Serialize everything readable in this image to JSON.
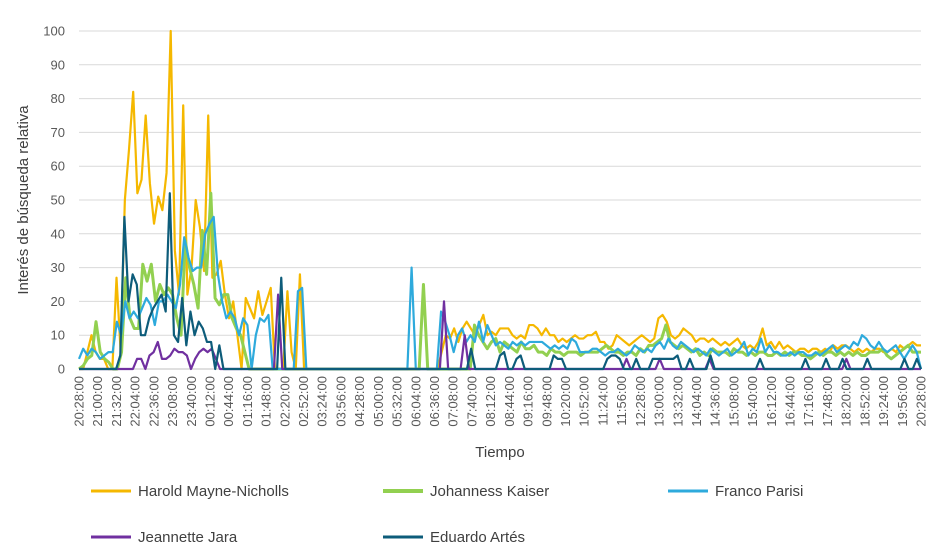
{
  "chart_data": {
    "type": "line",
    "title": "",
    "xlabel": "Tiempo",
    "ylabel": "Interés de búsqueda relativa",
    "ylim": [
      0,
      100
    ],
    "yticks": [
      0,
      10,
      20,
      30,
      40,
      50,
      60,
      70,
      80,
      90,
      100
    ],
    "grid": "horizontal",
    "legend_position": "bottom",
    "x_tick_labels": [
      "20:28:00",
      "21:00:00",
      "21:32:00",
      "22:04:00",
      "22:36:00",
      "23:08:00",
      "23:40:00",
      "00:12:00",
      "00:44:00",
      "01:16:00",
      "01:48:00",
      "02:20:00",
      "02:52:00",
      "03:24:00",
      "03:56:00",
      "04:28:00",
      "05:00:00",
      "05:32:00",
      "06:04:00",
      "06:36:00",
      "07:08:00",
      "07:40:00",
      "08:12:00",
      "08:44:00",
      "09:16:00",
      "09:48:00",
      "10:20:00",
      "10:52:00",
      "11:24:00",
      "11:56:00",
      "12:28:00",
      "13:00:00",
      "13:32:00",
      "14:04:00",
      "14:36:00",
      "15:08:00",
      "15:40:00",
      "16:12:00",
      "16:44:00",
      "17:16:00",
      "17:48:00",
      "18:20:00",
      "18:52:00",
      "19:24:00",
      "19:56:00",
      "20:28:00"
    ],
    "x_start": "20:28",
    "x_end": "20:28",
    "sampling": "8 min",
    "series": [
      {
        "name": "Harold Mayne-Nicholls",
        "color": "#F5B800",
        "values": [
          0,
          0,
          5,
          10,
          5,
          3,
          3,
          0,
          0,
          27,
          5,
          50,
          65,
          82,
          52,
          56,
          75,
          55,
          43,
          51,
          47,
          58,
          100,
          35,
          22,
          78,
          22,
          30,
          50,
          42,
          29,
          75,
          27,
          28,
          32,
          22,
          15,
          20,
          10,
          0,
          21,
          18,
          15,
          23,
          16,
          20,
          24,
          0,
          0,
          0,
          23,
          5,
          0,
          28,
          0,
          0,
          0,
          0,
          0,
          0,
          0,
          0,
          0,
          0,
          0,
          0,
          0,
          0,
          0,
          0,
          0,
          0,
          0,
          0,
          0,
          0,
          0,
          0,
          0,
          0,
          0,
          0,
          0,
          0,
          0,
          0,
          0,
          5,
          10,
          9,
          12,
          8,
          12,
          14,
          12,
          10,
          13,
          16,
          10,
          11,
          10,
          12,
          12,
          12,
          10,
          9,
          10,
          9,
          13,
          13,
          12,
          10,
          12,
          10,
          10,
          8,
          9,
          8,
          9,
          10,
          9,
          9,
          10,
          10,
          11,
          8,
          8,
          6,
          7,
          10,
          9,
          8,
          7,
          8,
          9,
          10,
          9,
          8,
          9,
          15,
          16,
          14,
          10,
          9,
          10,
          12,
          11,
          10,
          8,
          9,
          9,
          8,
          9,
          8,
          7,
          8,
          7,
          8,
          9,
          7,
          6,
          7,
          6,
          8,
          12,
          7,
          8,
          6,
          8,
          6,
          7,
          6,
          5,
          6,
          6,
          5,
          6,
          6,
          5,
          6,
          5,
          7,
          6,
          7,
          7,
          6,
          5,
          6,
          5,
          6,
          5,
          6,
          6,
          5,
          5,
          6,
          5,
          7,
          6,
          7,
          8,
          7,
          7
        ]
      },
      {
        "name": "Johanness Kaiser",
        "color": "#92D050",
        "values": [
          0,
          1,
          3,
          4,
          14,
          5,
          3,
          2,
          0,
          0,
          5,
          27,
          15,
          12,
          12,
          31,
          26,
          31,
          20,
          25,
          22,
          24,
          22,
          15,
          10,
          38,
          30,
          25,
          18,
          41,
          28,
          52,
          21,
          19,
          22,
          22,
          15,
          12,
          10,
          5,
          0,
          0,
          0,
          0,
          0,
          0,
          0,
          0,
          0,
          0,
          0,
          0,
          0,
          0,
          0,
          0,
          0,
          0,
          0,
          0,
          0,
          0,
          0,
          0,
          0,
          0,
          0,
          0,
          0,
          0,
          0,
          0,
          0,
          0,
          0,
          0,
          0,
          0,
          0,
          0,
          0,
          25,
          0,
          0,
          0,
          0,
          0,
          0,
          0,
          0,
          0,
          0,
          0,
          13,
          10,
          8,
          6,
          8,
          9,
          5,
          8,
          7,
          6,
          5,
          8,
          6,
          6,
          7,
          5,
          5,
          4,
          6,
          5,
          5,
          4,
          5,
          5,
          5,
          4,
          5,
          5,
          5,
          5,
          6,
          7,
          6,
          5,
          5,
          4,
          5,
          5,
          4,
          6,
          5,
          7,
          7,
          8,
          9,
          13,
          8,
          7,
          6,
          7,
          6,
          5,
          6,
          4,
          5,
          4,
          6,
          5,
          5,
          5,
          4,
          6,
          5,
          5,
          4,
          5,
          4,
          5,
          5,
          4,
          4,
          5,
          4,
          5,
          4,
          5,
          5,
          4,
          4,
          3,
          4,
          5,
          4,
          5,
          5,
          4,
          5,
          4,
          5,
          4,
          5,
          4,
          4,
          5,
          5,
          5,
          6,
          4,
          3,
          4,
          5,
          6,
          7,
          5,
          5,
          5
        ]
      },
      {
        "name": "Franco Parisi",
        "color": "#2EAADC",
        "values": [
          3,
          6,
          4,
          6,
          5,
          3,
          4,
          5,
          5,
          14,
          10,
          20,
          15,
          17,
          15,
          18,
          21,
          19,
          13,
          20,
          20,
          22,
          20,
          18,
          25,
          39,
          33,
          29,
          30,
          30,
          40,
          43,
          45,
          28,
          20,
          15,
          17,
          15,
          10,
          15,
          13,
          0,
          10,
          15,
          14,
          16,
          0,
          0,
          0,
          0,
          0,
          0,
          23,
          24,
          0,
          0,
          0,
          0,
          0,
          0,
          0,
          0,
          0,
          0,
          0,
          0,
          0,
          0,
          0,
          0,
          0,
          0,
          0,
          0,
          0,
          0,
          0,
          0,
          0,
          30,
          0,
          0,
          0,
          0,
          0,
          0,
          17,
          14,
          10,
          5,
          10,
          12,
          8,
          10,
          8,
          14,
          8,
          13,
          10,
          7,
          8,
          7,
          6,
          8,
          7,
          8,
          7,
          8,
          8,
          8,
          8,
          7,
          6,
          7,
          6,
          7,
          6,
          9,
          8,
          5,
          5,
          5,
          6,
          6,
          5,
          4,
          5,
          5,
          6,
          5,
          4,
          5,
          7,
          6,
          5,
          6,
          5,
          7,
          8,
          6,
          9,
          7,
          6,
          8,
          7,
          6,
          5,
          6,
          5,
          4,
          6,
          5,
          4,
          5,
          6,
          4,
          5,
          6,
          8,
          4,
          6,
          5,
          9,
          5,
          7,
          5,
          5,
          4,
          4,
          5,
          4,
          5,
          5,
          4,
          4,
          5,
          4,
          5,
          6,
          7,
          5,
          6,
          7,
          6,
          8,
          7,
          10,
          9,
          7,
          6,
          8,
          6,
          5,
          6,
          7,
          5,
          3,
          5,
          7,
          5,
          0
        ]
      },
      {
        "name": "Jeannette Jara",
        "color": "#7030A0",
        "values": [
          0,
          0,
          0,
          0,
          0,
          0,
          0,
          0,
          0,
          0,
          0,
          0,
          0,
          0,
          3,
          3,
          0,
          4,
          5,
          8,
          3,
          3,
          4,
          6,
          5,
          5,
          4,
          0,
          3,
          5,
          6,
          5,
          6,
          3,
          0,
          0,
          0,
          0,
          0,
          0,
          0,
          0,
          0,
          0,
          0,
          0,
          0,
          0,
          22,
          0,
          0,
          0,
          0,
          0,
          0,
          0,
          0,
          0,
          0,
          0,
          0,
          0,
          0,
          0,
          0,
          0,
          0,
          0,
          0,
          0,
          0,
          0,
          0,
          0,
          0,
          0,
          0,
          0,
          0,
          0,
          0,
          0,
          0,
          0,
          0,
          0,
          0,
          0,
          20,
          0,
          0,
          0,
          0,
          10,
          0,
          0,
          0,
          0,
          0,
          0,
          0,
          0,
          0,
          0,
          0,
          0,
          0,
          0,
          0,
          0,
          0,
          0,
          0,
          0,
          0,
          0,
          0,
          0,
          0,
          0,
          0,
          0,
          0,
          0,
          0,
          0,
          0,
          0,
          0,
          0,
          0,
          0,
          3,
          0,
          0,
          0,
          0,
          0,
          0,
          0,
          3,
          0,
          0,
          0,
          0,
          0,
          0,
          0,
          0,
          0,
          0,
          0,
          3,
          0,
          0,
          0,
          0,
          0,
          0,
          0,
          0,
          0,
          0,
          0,
          0,
          0,
          0,
          0,
          0,
          0,
          0,
          0,
          0,
          0,
          0,
          0,
          0,
          0,
          0,
          0,
          0,
          0,
          0,
          0,
          0,
          3,
          0,
          0,
          0,
          0,
          0,
          0,
          0,
          0,
          0,
          0,
          0,
          0,
          0,
          0,
          0,
          0,
          0,
          0
        ]
      },
      {
        "name": "Eduardo Artés",
        "color": "#0D5C7A",
        "values": [
          0,
          0,
          0,
          0,
          0,
          0,
          0,
          0,
          0,
          0,
          4,
          45,
          20,
          28,
          25,
          10,
          10,
          15,
          18,
          20,
          22,
          17,
          52,
          10,
          8,
          21,
          7,
          17,
          10,
          14,
          12,
          8,
          8,
          0,
          7,
          0,
          0,
          0,
          0,
          0,
          0,
          0,
          0,
          0,
          0,
          0,
          0,
          0,
          0,
          27,
          0,
          0,
          0,
          0,
          0,
          0,
          0,
          0,
          0,
          0,
          0,
          0,
          0,
          0,
          0,
          0,
          0,
          0,
          0,
          0,
          0,
          0,
          0,
          0,
          0,
          0,
          0,
          0,
          0,
          0,
          0,
          0,
          0,
          0,
          0,
          0,
          0,
          0,
          0,
          0,
          0,
          0,
          0,
          0,
          0,
          6,
          0,
          0,
          0,
          0,
          0,
          0,
          4,
          5,
          0,
          0,
          3,
          4,
          0,
          0,
          0,
          0,
          0,
          0,
          0,
          4,
          3,
          3,
          0,
          0,
          0,
          0,
          0,
          0,
          0,
          0,
          0,
          0,
          3,
          4,
          4,
          3,
          0,
          0,
          0,
          3,
          0,
          0,
          0,
          3,
          3,
          3,
          3,
          3,
          3,
          4,
          0,
          0,
          3,
          0,
          0,
          0,
          0,
          4,
          0,
          0,
          0,
          0,
          0,
          0,
          0,
          0,
          0,
          0,
          0,
          3,
          0,
          0,
          0,
          0,
          0,
          0,
          0,
          0,
          0,
          0,
          3,
          0,
          0,
          0,
          0,
          3,
          0,
          0,
          0,
          3,
          0,
          0,
          0,
          0,
          0,
          3,
          0,
          0,
          0,
          0,
          0,
          0,
          0,
          0,
          3,
          0,
          0,
          3,
          0
        ]
      }
    ]
  }
}
